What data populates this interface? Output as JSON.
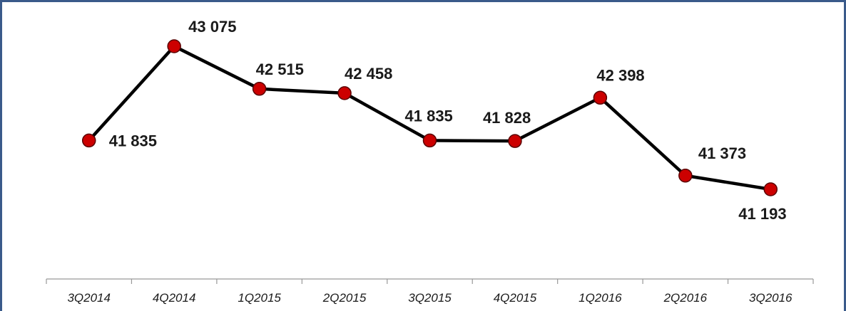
{
  "chart_data": {
    "type": "line",
    "categories": [
      "3Q2014",
      "4Q2014",
      "1Q2015",
      "2Q2015",
      "3Q2015",
      "4Q2015",
      "1Q2016",
      "2Q2016",
      "3Q2016"
    ],
    "values": [
      41835,
      43075,
      42515,
      42458,
      41835,
      41828,
      42398,
      41373,
      41193
    ],
    "value_labels": [
      "41 835",
      "43 075",
      "42 515",
      "42 458",
      "41 835",
      "41 828",
      "42 398",
      "41 373",
      "41 193"
    ],
    "title": "",
    "xlabel": "",
    "ylabel": "",
    "grid": false,
    "legend": "none",
    "colors": {
      "line": "#000000",
      "marker_fill": "#cc0000",
      "marker_stroke": "#5a0000",
      "frame": "#3a5a8a",
      "axis": "#999999"
    }
  }
}
